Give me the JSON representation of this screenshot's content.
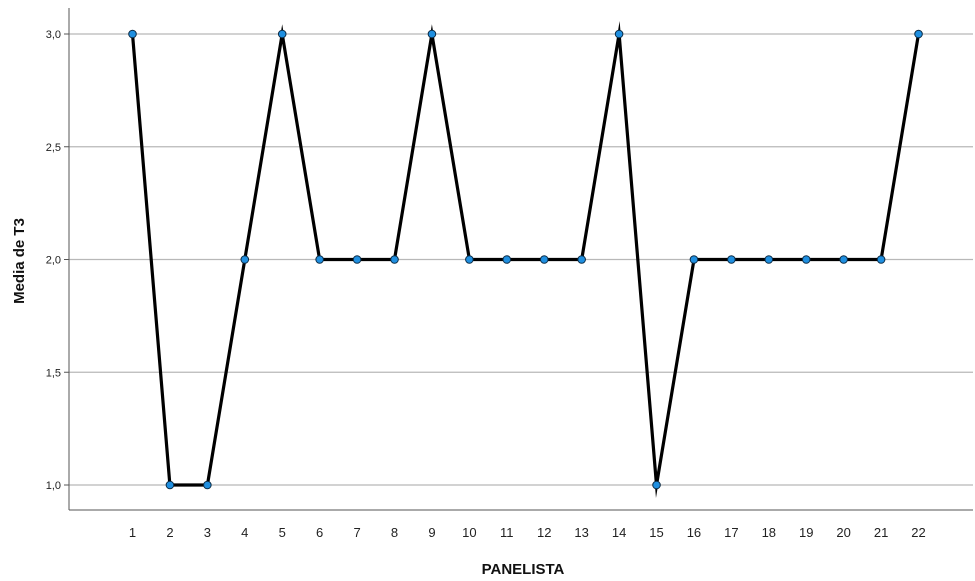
{
  "chart_data": {
    "type": "line",
    "title": "",
    "xlabel": "PANELISTA",
    "ylabel": "Media de T3",
    "categories": [
      "1",
      "2",
      "3",
      "4",
      "5",
      "6",
      "7",
      "8",
      "9",
      "10",
      "11",
      "12",
      "13",
      "14",
      "15",
      "16",
      "17",
      "18",
      "19",
      "20",
      "21",
      "22"
    ],
    "series": [
      {
        "values": [
          3.0,
          1.0,
          1.0,
          2.0,
          3.0,
          2.0,
          2.0,
          2.0,
          3.0,
          2.0,
          2.0,
          2.0,
          2.0,
          3.0,
          1.0,
          2.0,
          2.0,
          2.0,
          2.0,
          2.0,
          2.0,
          3.0
        ],
        "line_color": "#000000",
        "marker_color": "#1f8fe0"
      }
    ],
    "yticks": [
      "1,0",
      "1,5",
      "2,0",
      "2,5",
      "3,0"
    ],
    "ytick_values": [
      1.0,
      1.5,
      2.0,
      2.5,
      3.0
    ],
    "ylim": [
      0.88,
      3.12
    ],
    "grid": "horizontal",
    "grid_color": "#b8b8b8",
    "legend": "none"
  }
}
